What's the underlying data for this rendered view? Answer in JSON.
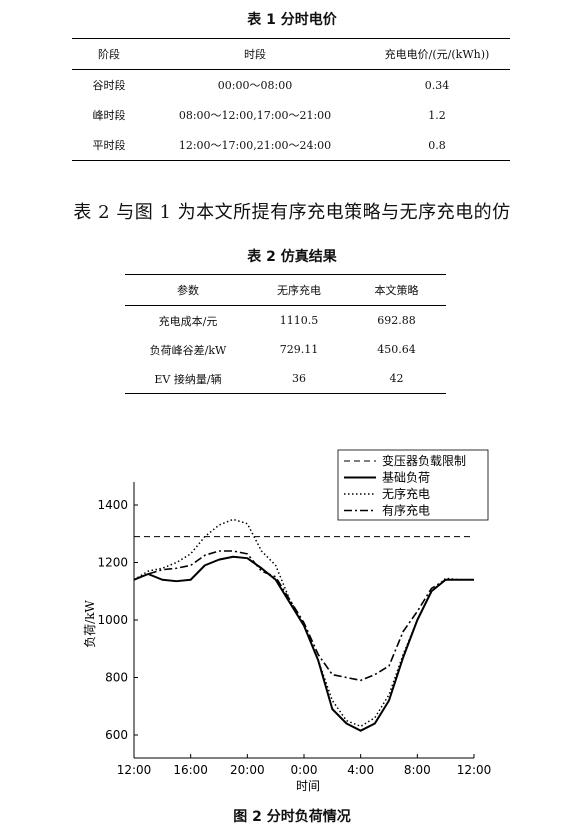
{
  "table1": {
    "caption": "表 1  分时电价",
    "headers": [
      "阶段",
      "时段",
      "充电电价/(元/(kWh))"
    ],
    "rows": [
      [
        "谷时段",
        "00:00～08:00",
        "0.34"
      ],
      [
        "峰时段",
        "08:00～12:00,17:00～21:00",
        "1.2"
      ],
      [
        "平时段",
        "12:00～17:00,21:00～24:00",
        "0.8"
      ]
    ]
  },
  "paragraph": "表 2 与图 1 为本文所提有序充电策略与无序充电的仿",
  "table2": {
    "caption": "表 2  仿真结果",
    "headers": [
      "参数",
      "无序充电",
      "本文策略"
    ],
    "rows": [
      [
        "充电成本/元",
        "1110.5",
        "692.88"
      ],
      [
        "负荷峰谷差/kW",
        "729.11",
        "450.64"
      ],
      [
        "EV 接纳量/辆",
        "36",
        "42"
      ]
    ]
  },
  "figure": {
    "caption": "图 2  分时负荷情况"
  },
  "chart_data": {
    "type": "line",
    "title": "",
    "xlabel": "时间",
    "ylabel": "负荷/kW",
    "x_ticks": [
      "12:00",
      "16:00",
      "20:00",
      "0:00",
      "4:00",
      "8:00",
      "12:00"
    ],
    "y_ticks": [
      600,
      800,
      1000,
      1200,
      1400
    ],
    "x_hours_range": [
      0,
      24
    ],
    "ylim": [
      520,
      1480
    ],
    "legend_position": "top-right",
    "x_hours": [
      0,
      1,
      2,
      3,
      4,
      5,
      6,
      7,
      8,
      9,
      10,
      11,
      12,
      13,
      14,
      15,
      16,
      17,
      18,
      19,
      20,
      21,
      22,
      23,
      24
    ],
    "series": [
      {
        "name": "变压器负载限制",
        "style": "dashed",
        "values": [
          1290,
          1290,
          1290,
          1290,
          1290,
          1290,
          1290,
          1290,
          1290,
          1290,
          1290,
          1290,
          1290,
          1290,
          1290,
          1290,
          1290,
          1290,
          1290,
          1290,
          1290,
          1290,
          1290,
          1290,
          1290
        ]
      },
      {
        "name": "基础负荷",
        "style": "solid",
        "values": [
          1140,
          1160,
          1140,
          1135,
          1140,
          1190,
          1210,
          1220,
          1215,
          1180,
          1140,
          1060,
          980,
          860,
          690,
          640,
          615,
          640,
          720,
          870,
          1000,
          1100,
          1140,
          1140,
          1140
        ]
      },
      {
        "name": "无序充电",
        "style": "dotted",
        "values": [
          1140,
          1170,
          1180,
          1200,
          1230,
          1290,
          1330,
          1350,
          1335,
          1240,
          1190,
          1070,
          980,
          860,
          720,
          650,
          630,
          660,
          740,
          880,
          1000,
          1100,
          1145,
          1140,
          1140
        ]
      },
      {
        "name": "有序充电",
        "style": "dashdot",
        "values": [
          1140,
          1160,
          1175,
          1180,
          1190,
          1225,
          1240,
          1240,
          1230,
          1170,
          1150,
          1070,
          990,
          880,
          810,
          800,
          790,
          810,
          840,
          960,
          1030,
          1110,
          1140,
          1140,
          1140
        ]
      }
    ]
  }
}
